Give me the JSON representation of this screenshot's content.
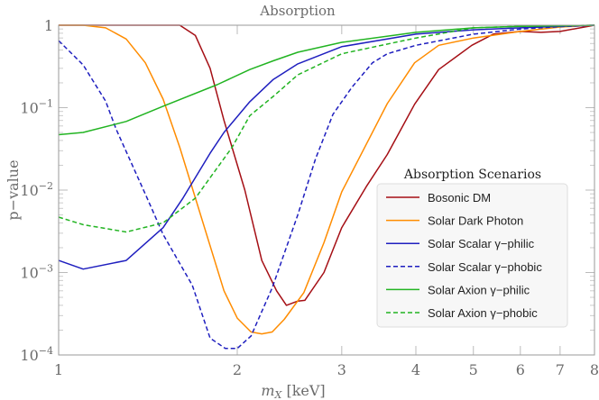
{
  "chart_data": {
    "type": "line",
    "title": "Absorption",
    "xlabel": "m_X [keV]",
    "xlabel_main": "m",
    "xlabel_sub": "X",
    "xlabel_unit": " [keV]",
    "ylabel": "p−value",
    "xscale": "log",
    "yscale": "log",
    "xlim": [
      1,
      8
    ],
    "ylim": [
      0.0001,
      1
    ],
    "grid": false,
    "x_ticks": [
      {
        "value": 1,
        "label": "1"
      },
      {
        "value": 2,
        "label": "2"
      },
      {
        "value": 3,
        "label": "3"
      },
      {
        "value": 4,
        "label": "4"
      },
      {
        "value": 5,
        "label": "5"
      },
      {
        "value": 6,
        "label": "6"
      },
      {
        "value": 7,
        "label": "7"
      },
      {
        "value": 8,
        "label": "8"
      }
    ],
    "y_ticks": [
      {
        "value": 1,
        "base": "1",
        "exp": ""
      },
      {
        "value": 0.1,
        "base": "10",
        "exp": "−1"
      },
      {
        "value": 0.01,
        "base": "10",
        "exp": "−2"
      },
      {
        "value": 0.001,
        "base": "10",
        "exp": "−3"
      },
      {
        "value": 0.0001,
        "base": "10",
        "exp": "−4"
      }
    ],
    "legend": {
      "title": "Absorption Scenarios",
      "placement": "center-right"
    },
    "series": [
      {
        "name": "Bosonic DM",
        "color": "#a50f15",
        "dashed": false,
        "x": [
          1,
          1.6,
          1.7,
          1.8,
          1.9,
          2.06,
          2.2,
          2.33,
          2.42,
          2.53,
          2.6,
          2.8,
          3,
          3.3,
          3.58,
          3.98,
          4.37,
          4.97,
          5.4,
          6,
          6.5,
          7,
          8
        ],
        "y": [
          1,
          1,
          0.75,
          0.3,
          0.07,
          0.01,
          0.0014,
          0.0006,
          0.0004,
          0.00045,
          0.00046,
          0.001,
          0.0035,
          0.011,
          0.027,
          0.11,
          0.29,
          0.57,
          0.78,
          0.84,
          0.82,
          0.84,
          1
        ]
      },
      {
        "name": "Solar Dark Photon",
        "color": "#ff8c00",
        "dashed": false,
        "x": [
          1,
          1.1,
          1.2,
          1.3,
          1.4,
          1.5,
          1.6,
          1.7,
          1.9,
          2.0,
          2.11,
          2.2,
          2.29,
          2.4,
          2.59,
          2.8,
          3,
          3.58,
          3.98,
          4.37,
          5,
          6,
          7,
          8
        ],
        "y": [
          1,
          1,
          0.93,
          0.68,
          0.35,
          0.127,
          0.033,
          0.008,
          0.0006,
          0.00028,
          0.00019,
          0.00018,
          0.00019,
          0.00027,
          0.00057,
          0.0023,
          0.0095,
          0.112,
          0.35,
          0.57,
          0.7,
          0.84,
          0.95,
          1
        ]
      },
      {
        "name": "Solar Scalar γ−philic",
        "color": "#1f1fbf",
        "dashed": false,
        "x": [
          1,
          1.1,
          1.3,
          1.5,
          1.62,
          1.8,
          1.9,
          2.1,
          2.3,
          2.53,
          3,
          4,
          5,
          6,
          8
        ],
        "y": [
          0.0014,
          0.0011,
          0.0014,
          0.0035,
          0.008,
          0.028,
          0.05,
          0.118,
          0.22,
          0.34,
          0.55,
          0.78,
          0.88,
          0.93,
          1
        ]
      },
      {
        "name": "Solar Scalar γ−phobic",
        "color": "#1f1fbf",
        "dashed": true,
        "x": [
          1,
          1.1,
          1.2,
          1.25,
          1.41,
          1.5,
          1.68,
          1.8,
          1.91,
          2.0,
          2.11,
          2.29,
          2.53,
          2.71,
          2.9,
          3.12,
          3.38,
          3.58,
          4,
          5,
          6,
          7,
          8
        ],
        "y": [
          0.65,
          0.33,
          0.12,
          0.055,
          0.008,
          0.0029,
          0.0007,
          0.00016,
          0.00012,
          0.00012,
          0.00017,
          0.00065,
          0.005,
          0.024,
          0.083,
          0.176,
          0.35,
          0.45,
          0.57,
          0.78,
          0.9,
          0.96,
          1
        ]
      },
      {
        "name": "Solar Axion γ−philic",
        "color": "#22b422",
        "dashed": false,
        "x": [
          1,
          1.1,
          1.3,
          1.5,
          1.85,
          2.1,
          2.3,
          2.53,
          3,
          4,
          5,
          6,
          8
        ],
        "y": [
          0.047,
          0.05,
          0.068,
          0.104,
          0.19,
          0.29,
          0.37,
          0.47,
          0.62,
          0.82,
          0.93,
          0.97,
          1
        ]
      },
      {
        "name": "Solar Axion γ−phobic",
        "color": "#22b422",
        "dashed": true,
        "x": [
          1,
          1.1,
          1.3,
          1.5,
          1.7,
          1.96,
          2.1,
          2.3,
          2.53,
          3,
          4,
          5,
          6,
          8
        ],
        "y": [
          0.0047,
          0.0038,
          0.0031,
          0.004,
          0.008,
          0.033,
          0.08,
          0.137,
          0.25,
          0.45,
          0.7,
          0.93,
          0.97,
          1
        ]
      }
    ]
  }
}
